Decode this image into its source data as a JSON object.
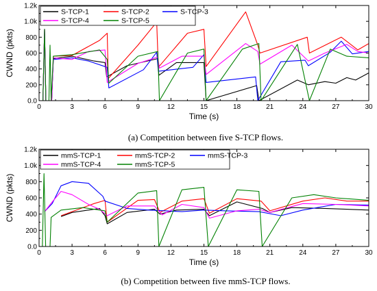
{
  "chart_data": [
    {
      "type": "line",
      "caption": "(a) Competition between five S-TCP flows.",
      "xlabel": "Time (s)",
      "ylabel": "CWND (pkts)",
      "xlim": [
        0,
        30
      ],
      "ylim": [
        0,
        1200
      ],
      "xticks": [
        0,
        3,
        6,
        9,
        12,
        15,
        18,
        21,
        24,
        27,
        30
      ],
      "yticks": [
        0,
        200,
        400,
        600,
        800,
        1000,
        1200
      ],
      "ytick_labels": [
        "0.0",
        "200",
        "400",
        "600",
        "800",
        "1.0k",
        "1.2k"
      ],
      "legend_position": "top-left",
      "series": [
        {
          "name": "S-TCP-1",
          "color": "#000000",
          "points": [
            [
              0,
              0
            ],
            [
              0.35,
              0
            ],
            [
              0.5,
              900
            ],
            [
              0.62,
              0
            ],
            [
              1.15,
              0
            ],
            [
              1.3,
              530
            ],
            [
              3,
              560
            ],
            [
              5,
              500
            ],
            [
              6,
              480
            ],
            [
              6.15,
              300
            ],
            [
              8,
              440
            ],
            [
              10.8,
              530
            ],
            [
              10.9,
              320
            ],
            [
              12.5,
              480
            ],
            [
              15,
              480
            ],
            [
              15.2,
              0
            ],
            [
              19.8,
              190
            ],
            [
              20,
              0
            ],
            [
              23.5,
              260
            ],
            [
              24.5,
              200
            ],
            [
              26,
              240
            ],
            [
              27,
              220
            ],
            [
              28,
              290
            ],
            [
              28.8,
              260
            ],
            [
              30,
              350
            ]
          ]
        },
        {
          "name": "S-TCP-2",
          "color": "#ff0000",
          "points": [
            [
              0,
              0
            ],
            [
              0.35,
              0
            ],
            [
              0.5,
              900
            ],
            [
              0.62,
              0
            ],
            [
              1.15,
              0
            ],
            [
              1.3,
              560
            ],
            [
              3,
              570
            ],
            [
              5.5,
              760
            ],
            [
              6.2,
              850
            ],
            [
              6.3,
              280
            ],
            [
              9,
              700
            ],
            [
              10.7,
              990
            ],
            [
              10.85,
              420
            ],
            [
              13.5,
              850
            ],
            [
              15,
              900
            ],
            [
              15.2,
              430
            ],
            [
              18.8,
              1120
            ],
            [
              19.9,
              700
            ],
            [
              20.1,
              600
            ],
            [
              24.4,
              800
            ],
            [
              24.6,
              600
            ],
            [
              27.5,
              800
            ],
            [
              29,
              640
            ],
            [
              30,
              720
            ]
          ]
        },
        {
          "name": "S-TCP-3",
          "color": "#0000ff",
          "points": [
            [
              0,
              0
            ],
            [
              0.35,
              0
            ],
            [
              0.5,
              900
            ],
            [
              0.62,
              0
            ],
            [
              1.15,
              0
            ],
            [
              1.3,
              520
            ],
            [
              3,
              540
            ],
            [
              4.5,
              500
            ],
            [
              6.2,
              420
            ],
            [
              6.35,
              160
            ],
            [
              9.5,
              390
            ],
            [
              10.7,
              610
            ],
            [
              10.85,
              370
            ],
            [
              14,
              420
            ],
            [
              15,
              580
            ],
            [
              15.2,
              230
            ],
            [
              19.7,
              300
            ],
            [
              19.9,
              0
            ],
            [
              22,
              490
            ],
            [
              24.2,
              510
            ],
            [
              24.5,
              440
            ],
            [
              26.5,
              610
            ],
            [
              27.5,
              750
            ],
            [
              28.5,
              590
            ],
            [
              30,
              620
            ]
          ]
        },
        {
          "name": "S-TCP-4",
          "color": "#ff00ff",
          "points": [
            [
              0,
              0
            ],
            [
              0.35,
              0
            ],
            [
              0.5,
              900
            ],
            [
              0.62,
              0
            ],
            [
              1.15,
              0
            ],
            [
              1.3,
              540
            ],
            [
              3,
              520
            ],
            [
              4.5,
              620
            ],
            [
              6,
              640
            ],
            [
              6.2,
              230
            ],
            [
              9,
              470
            ],
            [
              10.8,
              550
            ],
            [
              10.95,
              410
            ],
            [
              13,
              560
            ],
            [
              15,
              560
            ],
            [
              15.2,
              330
            ],
            [
              18.8,
              720
            ],
            [
              19.9,
              620
            ],
            [
              20.1,
              460
            ],
            [
              23,
              700
            ],
            [
              24.5,
              500
            ],
            [
              26,
              600
            ],
            [
              28,
              710
            ],
            [
              29,
              620
            ],
            [
              30,
              600
            ]
          ]
        },
        {
          "name": "S-TCP-5",
          "color": "#008000",
          "points": [
            [
              0,
              0
            ],
            [
              0.35,
              0
            ],
            [
              0.5,
              900
            ],
            [
              0.62,
              0
            ],
            [
              0.9,
              0
            ],
            [
              1.0,
              700
            ],
            [
              1.1,
              0
            ],
            [
              1.3,
              560
            ],
            [
              3,
              580
            ],
            [
              5.5,
              640
            ],
            [
              6.2,
              520
            ],
            [
              6.35,
              220
            ],
            [
              9,
              560
            ],
            [
              10.8,
              620
            ],
            [
              10.95,
              0
            ],
            [
              13.5,
              600
            ],
            [
              15,
              650
            ],
            [
              15.2,
              0
            ],
            [
              18.5,
              650
            ],
            [
              20,
              720
            ],
            [
              20.2,
              0
            ],
            [
              23.5,
              710
            ],
            [
              24.6,
              0
            ],
            [
              26.5,
              650
            ],
            [
              28,
              560
            ],
            [
              30,
              540
            ]
          ]
        }
      ]
    },
    {
      "type": "line",
      "caption": "(b) Competition between five mmS-TCP flows.",
      "xlabel": "Time (s)",
      "ylabel": "CWND (pkts)",
      "xlim": [
        0,
        30
      ],
      "ylim": [
        0,
        1200
      ],
      "xticks": [
        0,
        3,
        6,
        9,
        12,
        15,
        18,
        21,
        24,
        27,
        30
      ],
      "yticks": [
        0,
        200,
        400,
        600,
        800,
        1000,
        1200
      ],
      "ytick_labels": [
        "0.0",
        "200",
        "400",
        "600",
        "800",
        "1.0k",
        "1.2k"
      ],
      "legend_position": "top-left",
      "series": [
        {
          "name": "mmS-TCP-1",
          "color": "#000000",
          "points": [
            [
              2,
              370
            ],
            [
              3,
              420
            ],
            [
              4.5,
              450
            ],
            [
              5.5,
              470
            ],
            [
              6,
              380
            ],
            [
              6.2,
              280
            ],
            [
              8,
              420
            ],
            [
              10.5,
              460
            ],
            [
              11,
              400
            ],
            [
              12.5,
              450
            ],
            [
              15,
              460
            ],
            [
              15.5,
              380
            ],
            [
              18,
              550
            ],
            [
              20.3,
              470
            ],
            [
              21,
              420
            ],
            [
              23,
              480
            ],
            [
              26,
              470
            ],
            [
              30,
              450
            ]
          ]
        },
        {
          "name": "mmS-TCP-2",
          "color": "#ff0000",
          "points": [
            [
              2,
              380
            ],
            [
              3,
              430
            ],
            [
              5,
              530
            ],
            [
              6,
              570
            ],
            [
              6.2,
              300
            ],
            [
              9,
              570
            ],
            [
              10.5,
              580
            ],
            [
              11,
              420
            ],
            [
              13,
              560
            ],
            [
              15,
              590
            ],
            [
              15.5,
              410
            ],
            [
              18,
              590
            ],
            [
              20.2,
              560
            ],
            [
              21,
              440
            ],
            [
              24,
              560
            ],
            [
              26,
              600
            ],
            [
              28,
              560
            ],
            [
              30,
              560
            ]
          ]
        },
        {
          "name": "mmS-TCP-3",
          "color": "#0000ff",
          "points": [
            [
              0.5,
              430
            ],
            [
              1.2,
              530
            ],
            [
              2,
              750
            ],
            [
              3,
              800
            ],
            [
              4.5,
              780
            ],
            [
              5.8,
              620
            ],
            [
              6,
              560
            ],
            [
              8,
              470
            ],
            [
              10,
              450
            ],
            [
              11.5,
              440
            ],
            [
              13,
              430
            ],
            [
              15,
              450
            ],
            [
              17,
              440
            ],
            [
              20,
              430
            ],
            [
              22,
              380
            ],
            [
              24,
              450
            ],
            [
              27,
              520
            ],
            [
              30,
              510
            ]
          ]
        },
        {
          "name": "mmS-TCP-4",
          "color": "#ff00ff",
          "points": [
            [
              0.5,
              430
            ],
            [
              1.2,
              550
            ],
            [
              2,
              680
            ],
            [
              3,
              640
            ],
            [
              4.5,
              520
            ],
            [
              5.5,
              460
            ],
            [
              6.2,
              380
            ],
            [
              8,
              500
            ],
            [
              10.5,
              500
            ],
            [
              11.2,
              390
            ],
            [
              13,
              520
            ],
            [
              15,
              480
            ],
            [
              15.5,
              350
            ],
            [
              18,
              440
            ],
            [
              20,
              460
            ],
            [
              21,
              420
            ],
            [
              24,
              530
            ],
            [
              27,
              520
            ],
            [
              30,
              500
            ]
          ]
        },
        {
          "name": "mmS-TCP-5",
          "color": "#008000",
          "points": [
            [
              0,
              0
            ],
            [
              0.3,
              0
            ],
            [
              0.45,
              900
            ],
            [
              0.6,
              0
            ],
            [
              1.0,
              0
            ],
            [
              1.1,
              360
            ],
            [
              2,
              450
            ],
            [
              4,
              480
            ],
            [
              6,
              440
            ],
            [
              6.2,
              300
            ],
            [
              9,
              660
            ],
            [
              10.7,
              690
            ],
            [
              10.9,
              0
            ],
            [
              13,
              700
            ],
            [
              15,
              730
            ],
            [
              15.4,
              0
            ],
            [
              18,
              700
            ],
            [
              20,
              680
            ],
            [
              20.3,
              0
            ],
            [
              23,
              600
            ],
            [
              25,
              640
            ],
            [
              27,
              600
            ],
            [
              30,
              570
            ]
          ]
        }
      ]
    }
  ]
}
